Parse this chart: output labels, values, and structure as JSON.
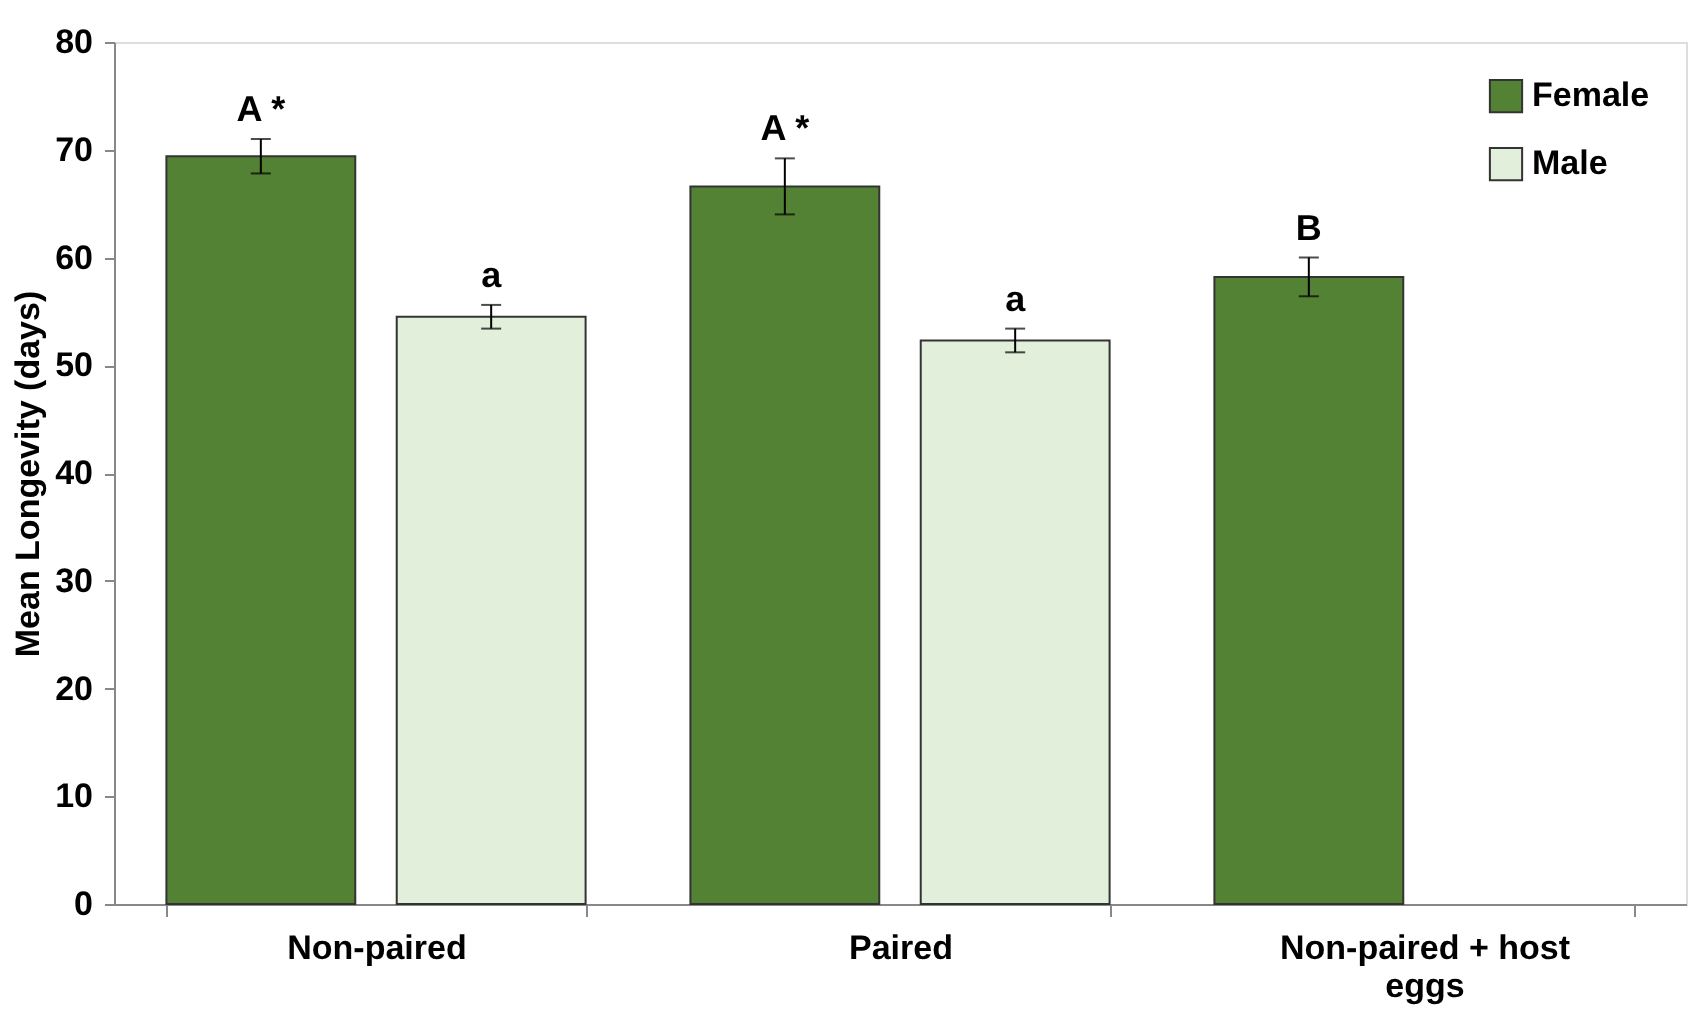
{
  "chart_data": {
    "type": "bar",
    "ylabel": "Mean Longevity (days)",
    "categories": [
      "Non-paired",
      "Paired",
      "Non-paired + host eggs"
    ],
    "series": [
      {
        "name": "Female",
        "color": "#548235",
        "values": [
          69.4,
          66.6,
          58.2
        ],
        "errors": [
          1.6,
          2.6,
          1.8
        ],
        "value_labels": [
          "A *",
          "A *",
          "B"
        ]
      },
      {
        "name": "Male",
        "color": "#e2efda",
        "values": [
          54.5,
          52.3,
          null
        ],
        "errors": [
          1.1,
          1.1,
          null
        ],
        "value_labels": [
          "a",
          "a",
          null
        ]
      }
    ],
    "ylim": [
      0,
      80
    ],
    "yticks": [
      0,
      10,
      20,
      30,
      40,
      50,
      60,
      70,
      80
    ],
    "grid": false,
    "legend": "top right"
  }
}
